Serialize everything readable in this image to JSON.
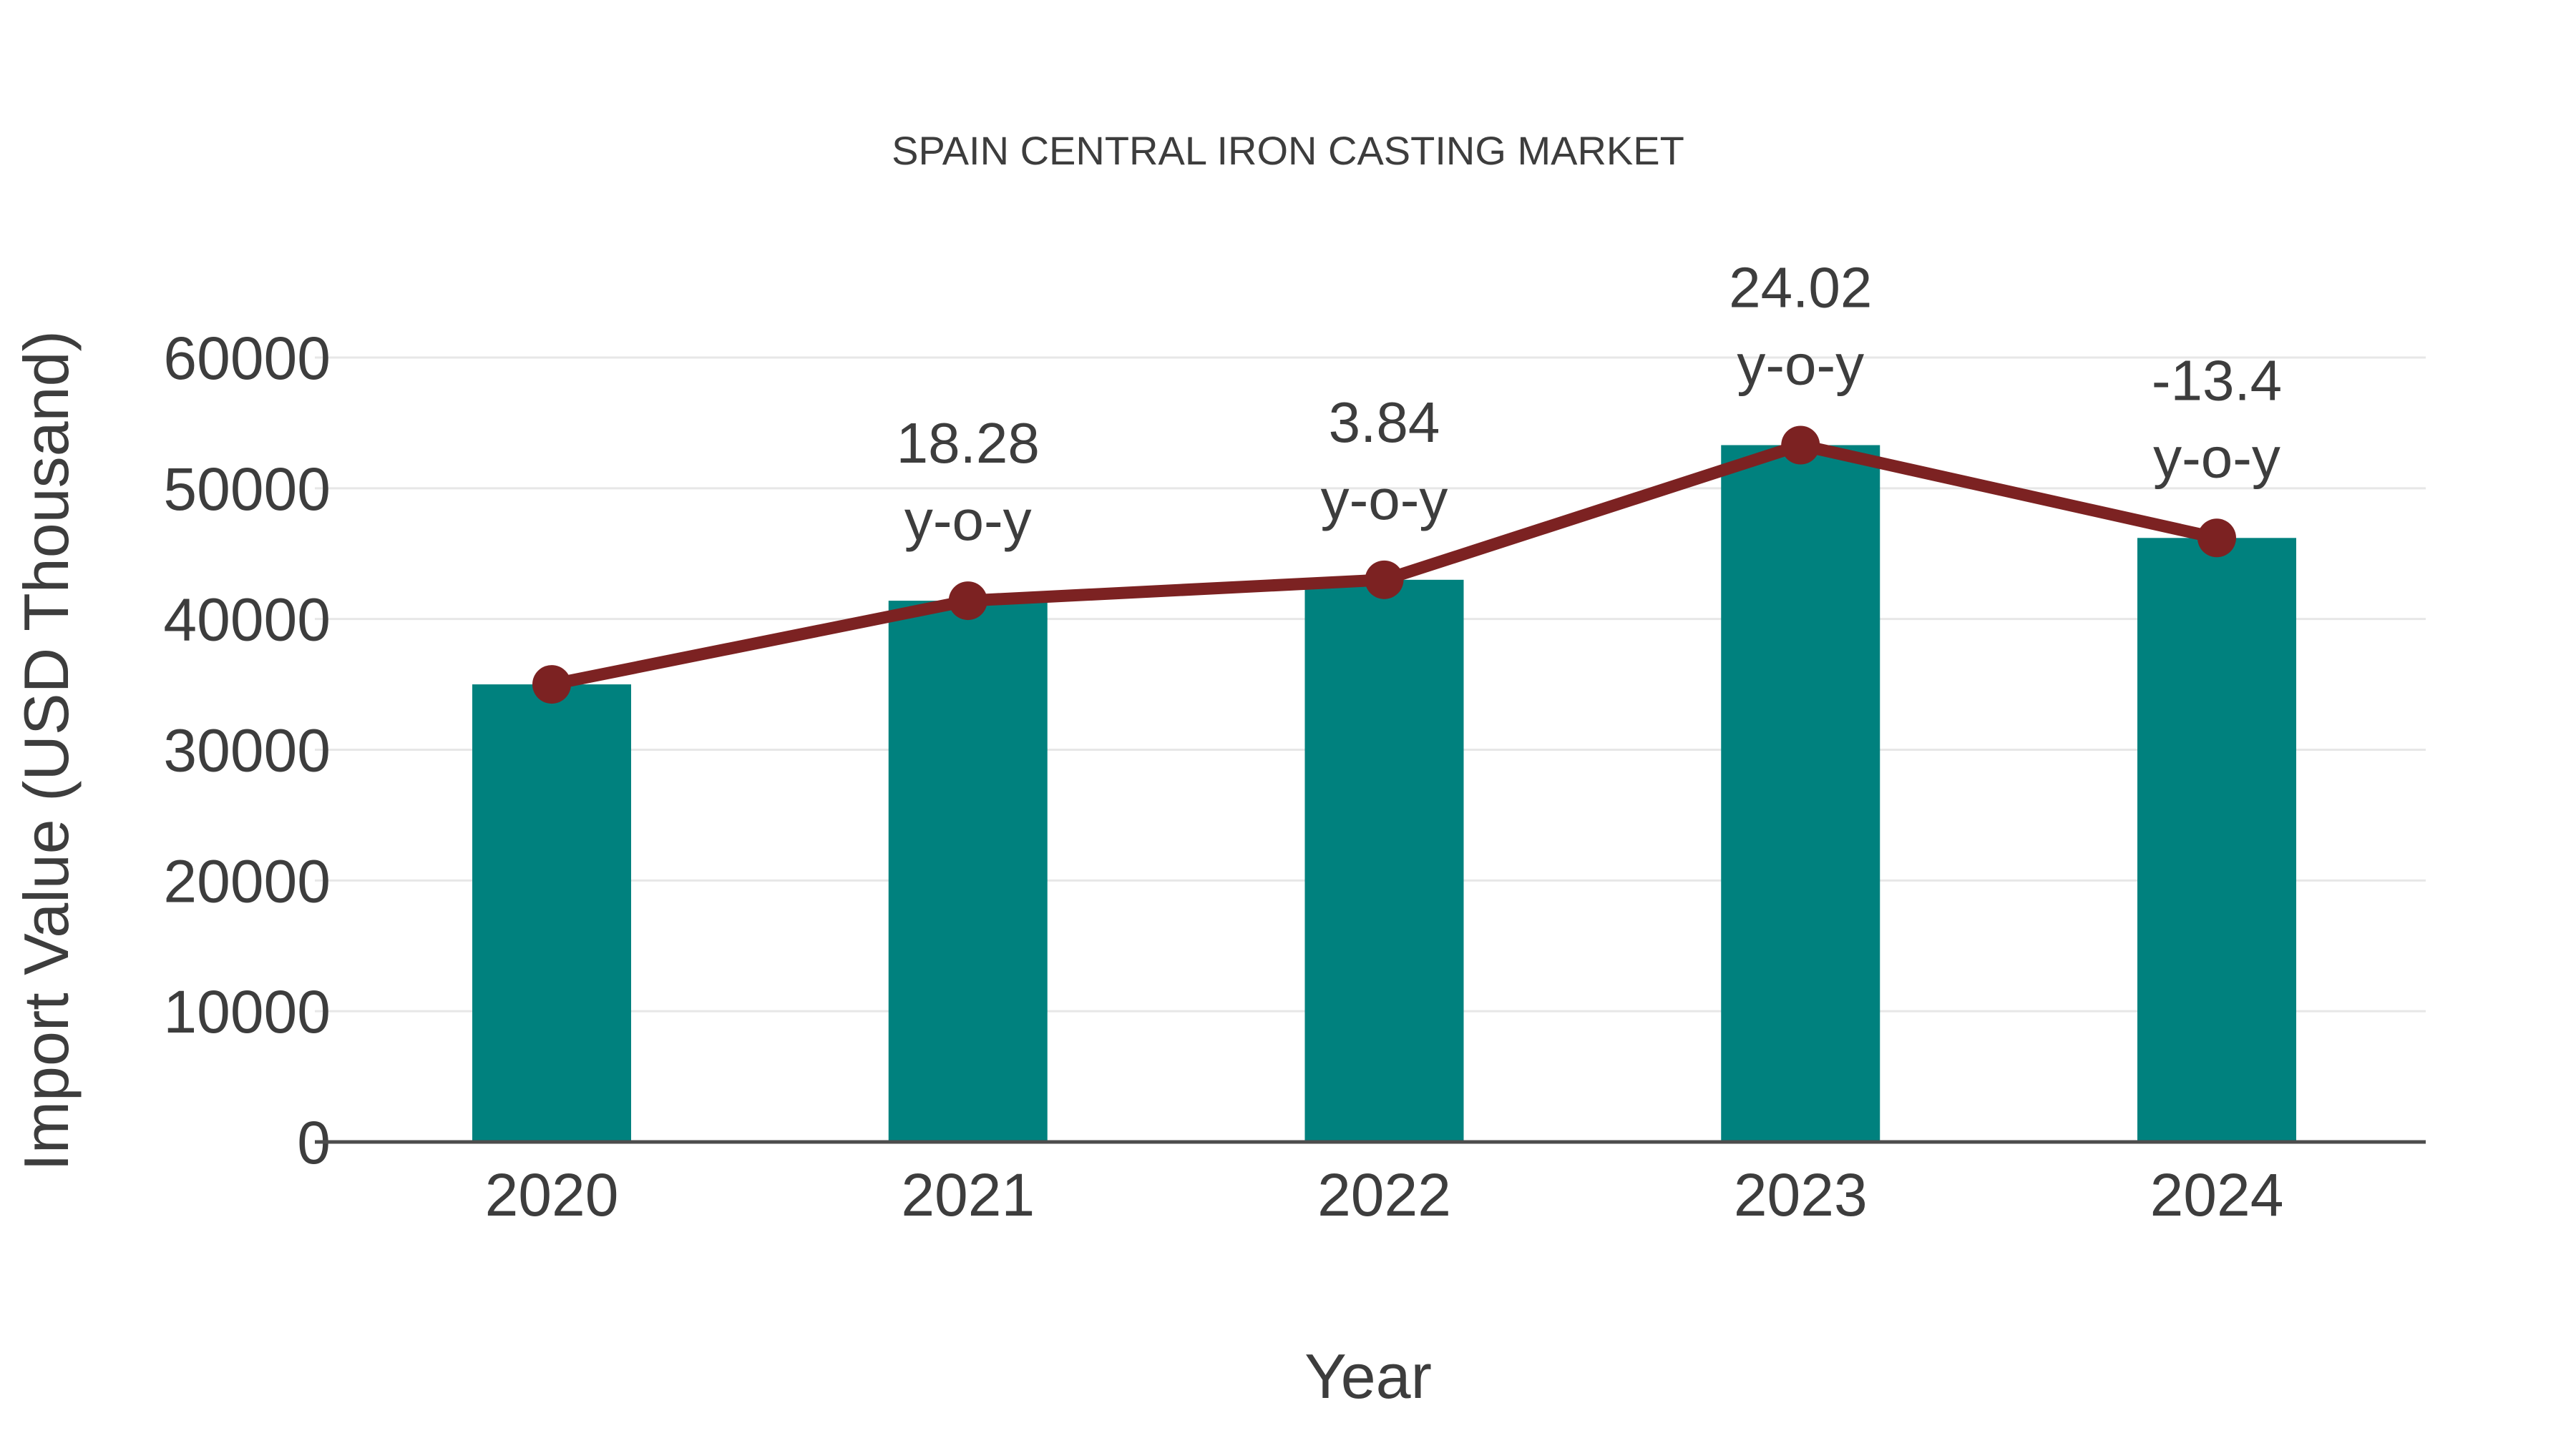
{
  "chart_data": {
    "type": "bar",
    "title": "SPAIN CENTRAL IRON CASTING MARKET",
    "xlabel": "Year",
    "ylabel": "Import Value (USD Thousand)",
    "categories": [
      "2020",
      "2021",
      "2022",
      "2023",
      "2024"
    ],
    "series": [
      {
        "name": "Import Value (USD Thousand)",
        "type": "bar",
        "color": "#00817E",
        "values": [
          35000,
          41400,
          43000,
          53300,
          46200
        ]
      },
      {
        "name": "y-o-y trend line",
        "type": "line",
        "color": "#7C2222",
        "values": [
          35000,
          41400,
          43000,
          53300,
          46200
        ]
      }
    ],
    "annotations": [
      {
        "category": "2021",
        "line1": "18.28",
        "line2": "y-o-y"
      },
      {
        "category": "2022",
        "line1": "3.84",
        "line2": "y-o-y"
      },
      {
        "category": "2023",
        "line1": "24.02",
        "line2": "y-o-y"
      },
      {
        "category": "2024",
        "line1": "-13.4",
        "line2": "y-o-y"
      }
    ],
    "yoy_percent": {
      "2021": 18.28,
      "2022": 3.84,
      "2023": 24.02,
      "2024": -13.4
    },
    "ylim": [
      0,
      60000
    ],
    "yticks": [
      0,
      10000,
      20000,
      30000,
      40000,
      50000,
      60000
    ],
    "grid": "horizontal",
    "legend_position": "none",
    "colors": {
      "bar": "#00817E",
      "line": "#7C2222",
      "marker": "#7C2222",
      "gridline": "#E7E7E7",
      "axis_line": "#4D4D4D",
      "text": "#3D3D3D",
      "background": "#FFFFFF"
    }
  }
}
